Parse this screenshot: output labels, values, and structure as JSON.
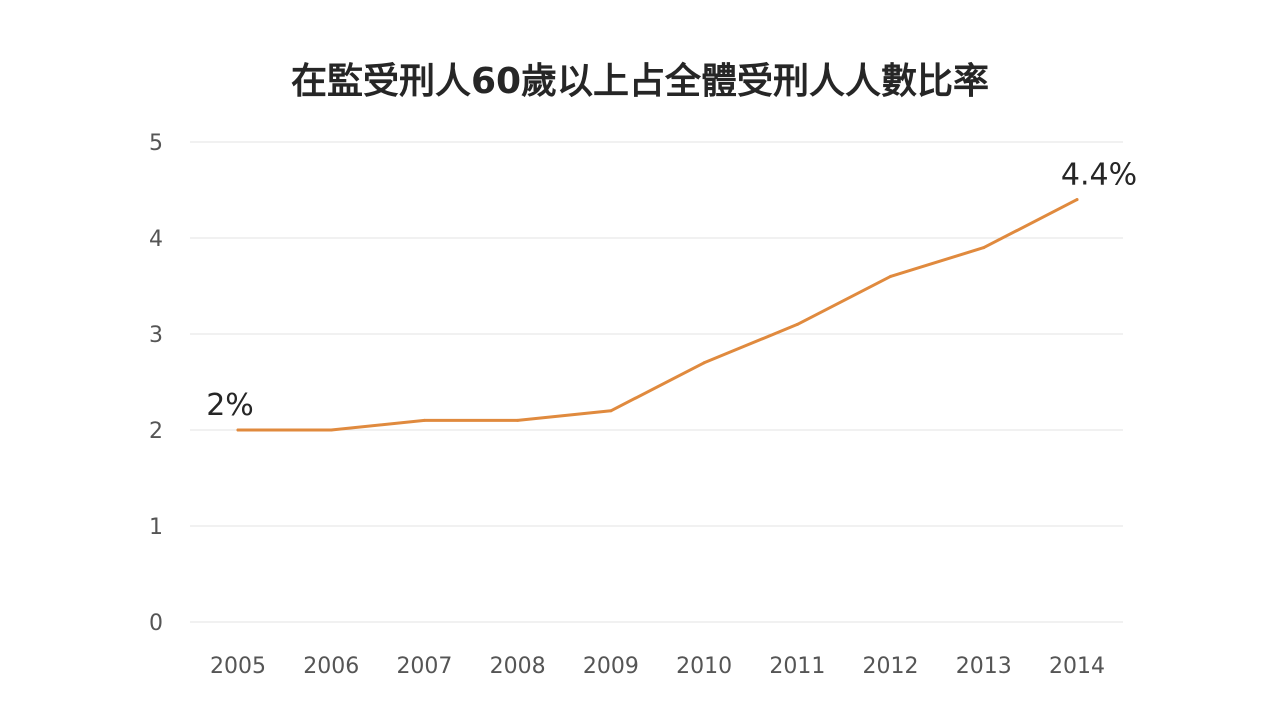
{
  "chart_data": {
    "type": "line",
    "title": "在監受刑人60歲以上占全體受刑人人數比率",
    "xlabel": "",
    "ylabel": "",
    "categories": [
      "2005",
      "2006",
      "2007",
      "2008",
      "2009",
      "2010",
      "2011",
      "2012",
      "2013",
      "2014"
    ],
    "series": [
      {
        "values": [
          2.0,
          2.0,
          2.1,
          2.1,
          2.2,
          2.7,
          3.1,
          3.6,
          3.9,
          4.4
        ]
      }
    ],
    "ylim": [
      0,
      5
    ],
    "yticks": [
      "0",
      "1",
      "2",
      "3",
      "4",
      "5"
    ],
    "grid": true,
    "legend": "none",
    "data_labels": [
      {
        "index": 0,
        "text": "2%"
      },
      {
        "index": 9,
        "text": "4.4%"
      }
    ],
    "line_color": "#e08a3e"
  }
}
